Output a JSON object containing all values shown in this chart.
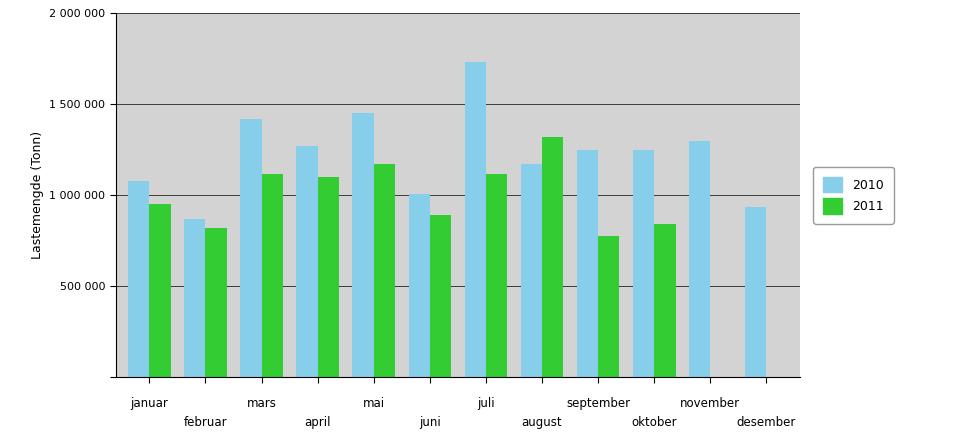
{
  "months": [
    "januar",
    "februar",
    "mars",
    "april",
    "mai",
    "juni",
    "juli",
    "august",
    "september",
    "oktober",
    "november",
    "desember"
  ],
  "values_2010": [
    1080000,
    870000,
    1420000,
    1270000,
    1450000,
    1005000,
    1730000,
    1175000,
    1250000,
    1250000,
    1300000,
    935000
  ],
  "values_2011": [
    955000,
    820000,
    1120000,
    1100000,
    1175000,
    890000,
    1120000,
    1320000,
    775000,
    845000,
    0,
    0
  ],
  "color_2010": "#87CEEB",
  "color_2011": "#33CC33",
  "ylabel": "Lastemengde (Tonn)",
  "ylim": [
    0,
    2000000
  ],
  "yticks": [
    0,
    500000,
    1000000,
    1500000,
    2000000
  ],
  "ytick_labels": [
    "",
    "500 000",
    "1 000 000",
    "1 500 000",
    "2 000 000"
  ],
  "legend_labels": [
    "2010",
    "2011"
  ],
  "background_color": "#D3D3D3",
  "bar_width": 0.38,
  "grid_color": "#000000"
}
